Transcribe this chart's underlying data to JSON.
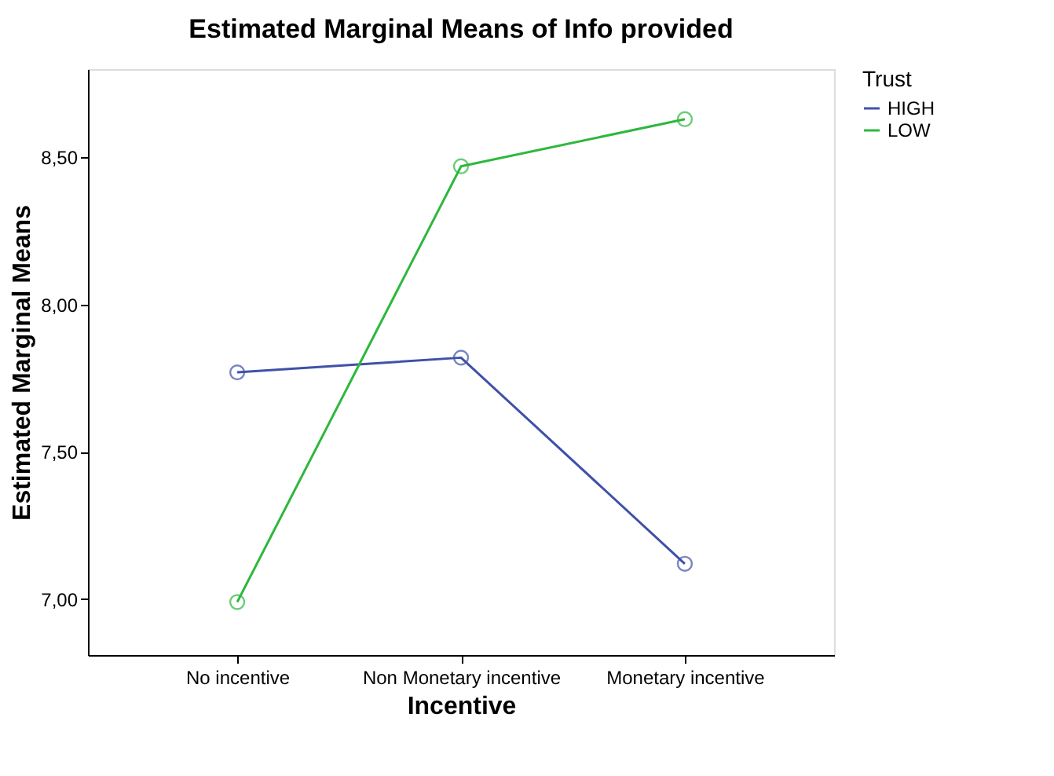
{
  "chart_data": {
    "type": "line",
    "title": "Estimated Marginal Means of Info provided",
    "xlabel": "Incentive",
    "ylabel": "Estimated Marginal Means",
    "legend_title": "Trust",
    "categories": [
      "No incentive",
      "Non Monetary incentive",
      "Monetary incentive"
    ],
    "series": [
      {
        "name": "HIGH",
        "color": "#3f51a8",
        "values": [
          7.77,
          7.82,
          7.12
        ]
      },
      {
        "name": "LOW",
        "color": "#2db83d",
        "values": [
          6.99,
          8.47,
          8.63
        ]
      }
    ],
    "ylim": [
      6.81,
      8.8
    ],
    "yticks": [
      {
        "value": 7,
        "label": "7,00"
      },
      {
        "value": 7.5,
        "label": "7,50"
      },
      {
        "value": 8,
        "label": "8,00"
      },
      {
        "value": 8.5,
        "label": "8,50"
      }
    ],
    "grid": false,
    "legend": "top right",
    "marker": "circle",
    "line_style": "solid"
  }
}
